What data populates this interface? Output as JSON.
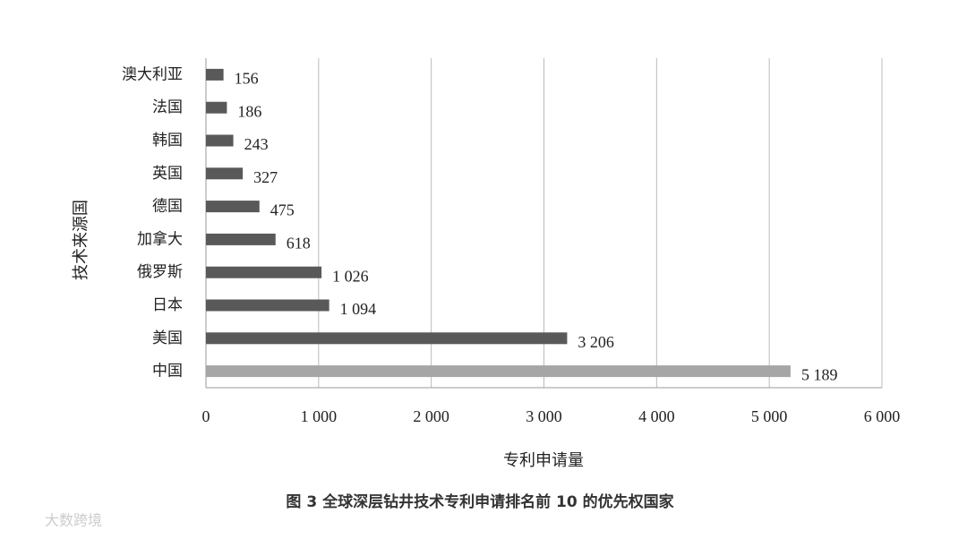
{
  "chart_data": {
    "type": "hbar",
    "categories": [
      "澳大利亚",
      "法国",
      "韩国",
      "英国",
      "德国",
      "加拿大",
      "俄罗斯",
      "日本",
      "美国",
      "中国"
    ],
    "values": [
      156,
      186,
      243,
      327,
      475,
      618,
      1026,
      1094,
      3206,
      5189
    ],
    "value_labels": [
      "156",
      "186",
      "243",
      "327",
      "475",
      "618",
      "1 026",
      "1 094",
      "3 206",
      "5 189"
    ],
    "colors": [
      "#595959",
      "#595959",
      "#595959",
      "#595959",
      "#595959",
      "#595959",
      "#595959",
      "#595959",
      "#595959",
      "#a6a6a6"
    ],
    "xlim": [
      0,
      6000
    ],
    "xticks": [
      0,
      {
        "value": 1000,
        "label": "1 000"
      },
      {
        "value": 2000,
        "label": "2 000"
      },
      {
        "value": 3000,
        "label": "3 000"
      },
      {
        "value": 4000,
        "label": "4 000"
      },
      {
        "value": 5000,
        "label": "5 000"
      },
      {
        "value": 6000,
        "label": "6 000"
      }
    ],
    "grid": true,
    "x_label": "专利申请量",
    "y_label": "技术来源国",
    "caption": "图 3   全球深层钻井技术专利申请排名前 10 的优先权国家",
    "watermark": "大数跨境"
  }
}
